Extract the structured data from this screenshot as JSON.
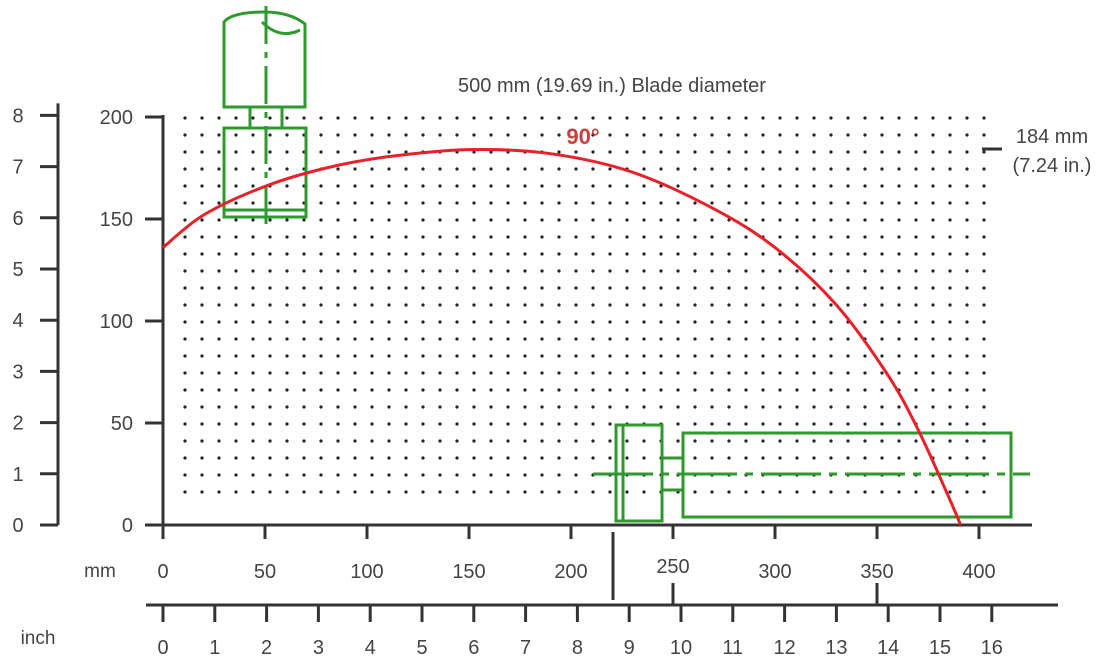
{
  "chart_data": {
    "type": "line",
    "title": "500 mm (19.69 in.) Blade diameter",
    "x_axis_mm": {
      "unit_label": "mm",
      "range": [
        0,
        400
      ],
      "ticks": [
        0,
        50,
        100,
        150,
        200,
        250,
        300,
        350,
        400
      ],
      "tick_labels": [
        "0",
        "50",
        "100",
        "150",
        "200",
        "250",
        "300",
        "350",
        "400"
      ]
    },
    "x_axis_inch": {
      "unit_label": "inch",
      "range": [
        0,
        16
      ],
      "ticks": [
        0,
        1,
        2,
        3,
        4,
        5,
        6,
        7,
        8,
        9,
        10,
        11,
        12,
        13,
        14,
        15,
        16
      ],
      "tick_labels": [
        "0",
        "1",
        "2",
        "3",
        "4",
        "5",
        "6",
        "7",
        "8",
        "9",
        "10",
        "11",
        "12",
        "13",
        "14",
        "15",
        "16"
      ]
    },
    "y_axis_mm": {
      "range": [
        0,
        200
      ],
      "ticks": [
        0,
        50,
        100,
        150,
        200
      ],
      "tick_labels": [
        "0",
        "50",
        "100",
        "150",
        "200"
      ]
    },
    "y_axis_inch": {
      "range": [
        0,
        8
      ],
      "ticks": [
        0,
        1,
        2,
        3,
        4,
        5,
        6,
        7,
        8
      ],
      "tick_labels": [
        "0",
        "1",
        "2",
        "3",
        "4",
        "5",
        "6",
        "7",
        "8"
      ]
    },
    "series": [
      {
        "name": "90°",
        "color": "#e8202a",
        "x": [
          0,
          20,
          50,
          80,
          110,
          150,
          190,
          230,
          270,
          300,
          330,
          355,
          370,
          385,
          391
        ],
        "y": [
          136,
          152,
          166,
          175,
          180.5,
          184,
          182,
          173,
          155,
          136,
          108,
          74,
          47,
          14,
          0
        ]
      }
    ],
    "annotations": {
      "max_height_line1": "184 mm",
      "max_height_line2": "(7.24 in.)",
      "max_height_value_mm": 184
    },
    "grid": "dotted"
  }
}
